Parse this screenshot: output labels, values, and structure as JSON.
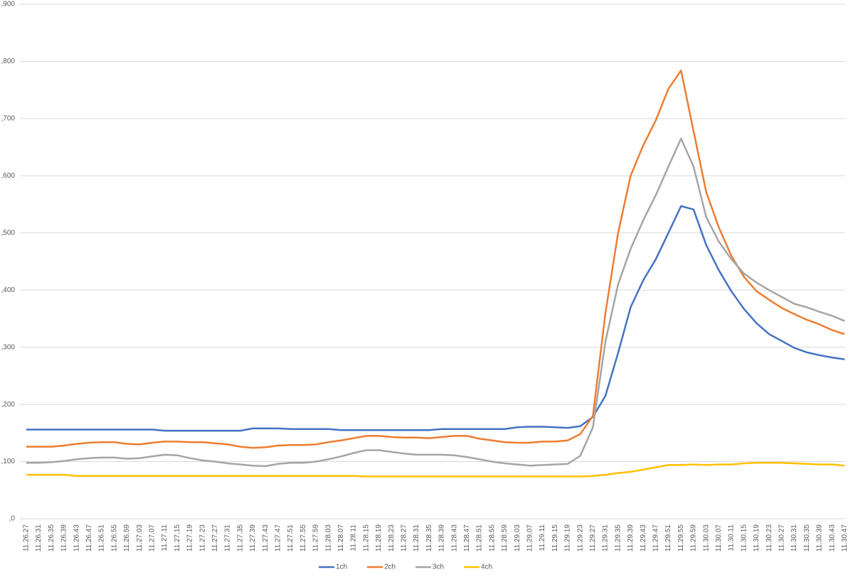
{
  "chart_data": {
    "type": "line",
    "categories": [
      "11.26.27",
      "11.26.31",
      "11.26.35",
      "11.26.39",
      "11.26.43",
      "11.26.47",
      "11.26.51",
      "11.26.55",
      "11.26.59",
      "11.27.03",
      "11.27.07",
      "11.27.11",
      "11.27.15",
      "11.27.19",
      "11.27.23",
      "11.27.27",
      "11.27.31",
      "11.27.35",
      "11.27.39",
      "11.27.43",
      "11.27.47",
      "11.27.51",
      "11.27.55",
      "11.27.59",
      "11.28.03",
      "11.28.07",
      "11.28.11",
      "11.28.15",
      "11.28.19",
      "11.28.23",
      "11.28.27",
      "11.28.31",
      "11.28.35",
      "11.28.39",
      "11.28.43",
      "11.28.47",
      "11.28.51",
      "11.28.55",
      "11.28.59",
      "11.29.03",
      "11.29.07",
      "11.29.11",
      "11.29.15",
      "11.29.19",
      "11.29.23",
      "11.29.27",
      "11.29.31",
      "11.29.35",
      "11.29.39",
      "11.29.43",
      "11.29.47",
      "11.29.51",
      "11.29.55",
      "11.29.59",
      "11.30.03",
      "11.30.07",
      "11.30.11",
      "11.30.15",
      "11.30.19",
      "11.30.23",
      "11.30.27",
      "11.30.31",
      "11.30.35",
      "11.30.39",
      "11.30.43",
      "11.30.47"
    ],
    "series": [
      {
        "name": "1ch",
        "color": "#4472c4",
        "values": [
          0.156,
          0.156,
          0.156,
          0.156,
          0.156,
          0.156,
          0.156,
          0.156,
          0.156,
          0.156,
          0.156,
          0.154,
          0.154,
          0.154,
          0.154,
          0.154,
          0.154,
          0.154,
          0.158,
          0.158,
          0.158,
          0.157,
          0.157,
          0.157,
          0.157,
          0.155,
          0.155,
          0.155,
          0.155,
          0.155,
          0.155,
          0.155,
          0.155,
          0.157,
          0.157,
          0.157,
          0.157,
          0.157,
          0.157,
          0.16,
          0.161,
          0.161,
          0.16,
          0.159,
          0.162,
          0.178,
          0.215,
          0.29,
          0.37,
          0.417,
          0.454,
          0.5,
          0.547,
          0.541,
          0.479,
          0.435,
          0.398,
          0.367,
          0.342,
          0.323,
          0.311,
          0.299,
          0.291,
          0.286,
          0.282,
          0.279
        ]
      },
      {
        "name": "2ch",
        "color": "#ed7d31",
        "values": [
          0.126,
          0.126,
          0.126,
          0.128,
          0.131,
          0.133,
          0.134,
          0.134,
          0.131,
          0.13,
          0.133,
          0.135,
          0.135,
          0.134,
          0.134,
          0.132,
          0.13,
          0.126,
          0.124,
          0.125,
          0.128,
          0.129,
          0.129,
          0.13,
          0.134,
          0.137,
          0.141,
          0.145,
          0.145,
          0.143,
          0.142,
          0.142,
          0.141,
          0.143,
          0.145,
          0.145,
          0.14,
          0.137,
          0.134,
          0.133,
          0.133,
          0.135,
          0.135,
          0.137,
          0.148,
          0.18,
          0.36,
          0.5,
          0.6,
          0.653,
          0.697,
          0.752,
          0.784,
          0.678,
          0.572,
          0.51,
          0.46,
          0.423,
          0.398,
          0.383,
          0.369,
          0.358,
          0.348,
          0.34,
          0.33,
          0.323
        ]
      },
      {
        "name": "3ch",
        "color": "#a5a5a5",
        "values": [
          0.098,
          0.098,
          0.099,
          0.101,
          0.104,
          0.106,
          0.107,
          0.107,
          0.105,
          0.106,
          0.109,
          0.112,
          0.111,
          0.106,
          0.102,
          0.1,
          0.097,
          0.095,
          0.093,
          0.092,
          0.096,
          0.098,
          0.098,
          0.1,
          0.104,
          0.109,
          0.115,
          0.12,
          0.12,
          0.117,
          0.114,
          0.112,
          0.112,
          0.112,
          0.111,
          0.108,
          0.104,
          0.1,
          0.097,
          0.095,
          0.093,
          0.094,
          0.095,
          0.096,
          0.11,
          0.16,
          0.31,
          0.41,
          0.472,
          0.522,
          0.566,
          0.616,
          0.665,
          0.616,
          0.528,
          0.485,
          0.454,
          0.429,
          0.413,
          0.4,
          0.388,
          0.376,
          0.37,
          0.362,
          0.355,
          0.346
        ]
      },
      {
        "name": "4ch",
        "color": "#ffc000",
        "values": [
          0.077,
          0.077,
          0.077,
          0.077,
          0.075,
          0.075,
          0.075,
          0.075,
          0.075,
          0.075,
          0.075,
          0.075,
          0.075,
          0.075,
          0.075,
          0.075,
          0.075,
          0.075,
          0.075,
          0.075,
          0.075,
          0.075,
          0.075,
          0.075,
          0.075,
          0.075,
          0.075,
          0.074,
          0.074,
          0.074,
          0.074,
          0.074,
          0.074,
          0.074,
          0.074,
          0.074,
          0.074,
          0.074,
          0.074,
          0.074,
          0.074,
          0.074,
          0.074,
          0.074,
          0.074,
          0.075,
          0.077,
          0.08,
          0.082,
          0.086,
          0.09,
          0.094,
          0.094,
          0.095,
          0.094,
          0.095,
          0.095,
          0.097,
          0.098,
          0.098,
          0.098,
          0.097,
          0.096,
          0.095,
          0.095,
          0.093
        ]
      }
    ],
    "ylim": [
      0,
      0.9
    ],
    "yticks": [
      {
        "value": 0,
        "label": ",0"
      },
      {
        "value": 0.1,
        "label": ",100"
      },
      {
        "value": 0.2,
        "label": ",200"
      },
      {
        "value": 0.3,
        "label": ",300"
      },
      {
        "value": 0.4,
        "label": ",400"
      },
      {
        "value": 0.5,
        "label": ",500"
      },
      {
        "value": 0.6,
        "label": ",600"
      },
      {
        "value": 0.7,
        "label": ",700"
      },
      {
        "value": 0.8,
        "label": ",800"
      },
      {
        "value": 0.9,
        "label": ",900"
      }
    ],
    "grid": true,
    "legend": "bottom"
  }
}
